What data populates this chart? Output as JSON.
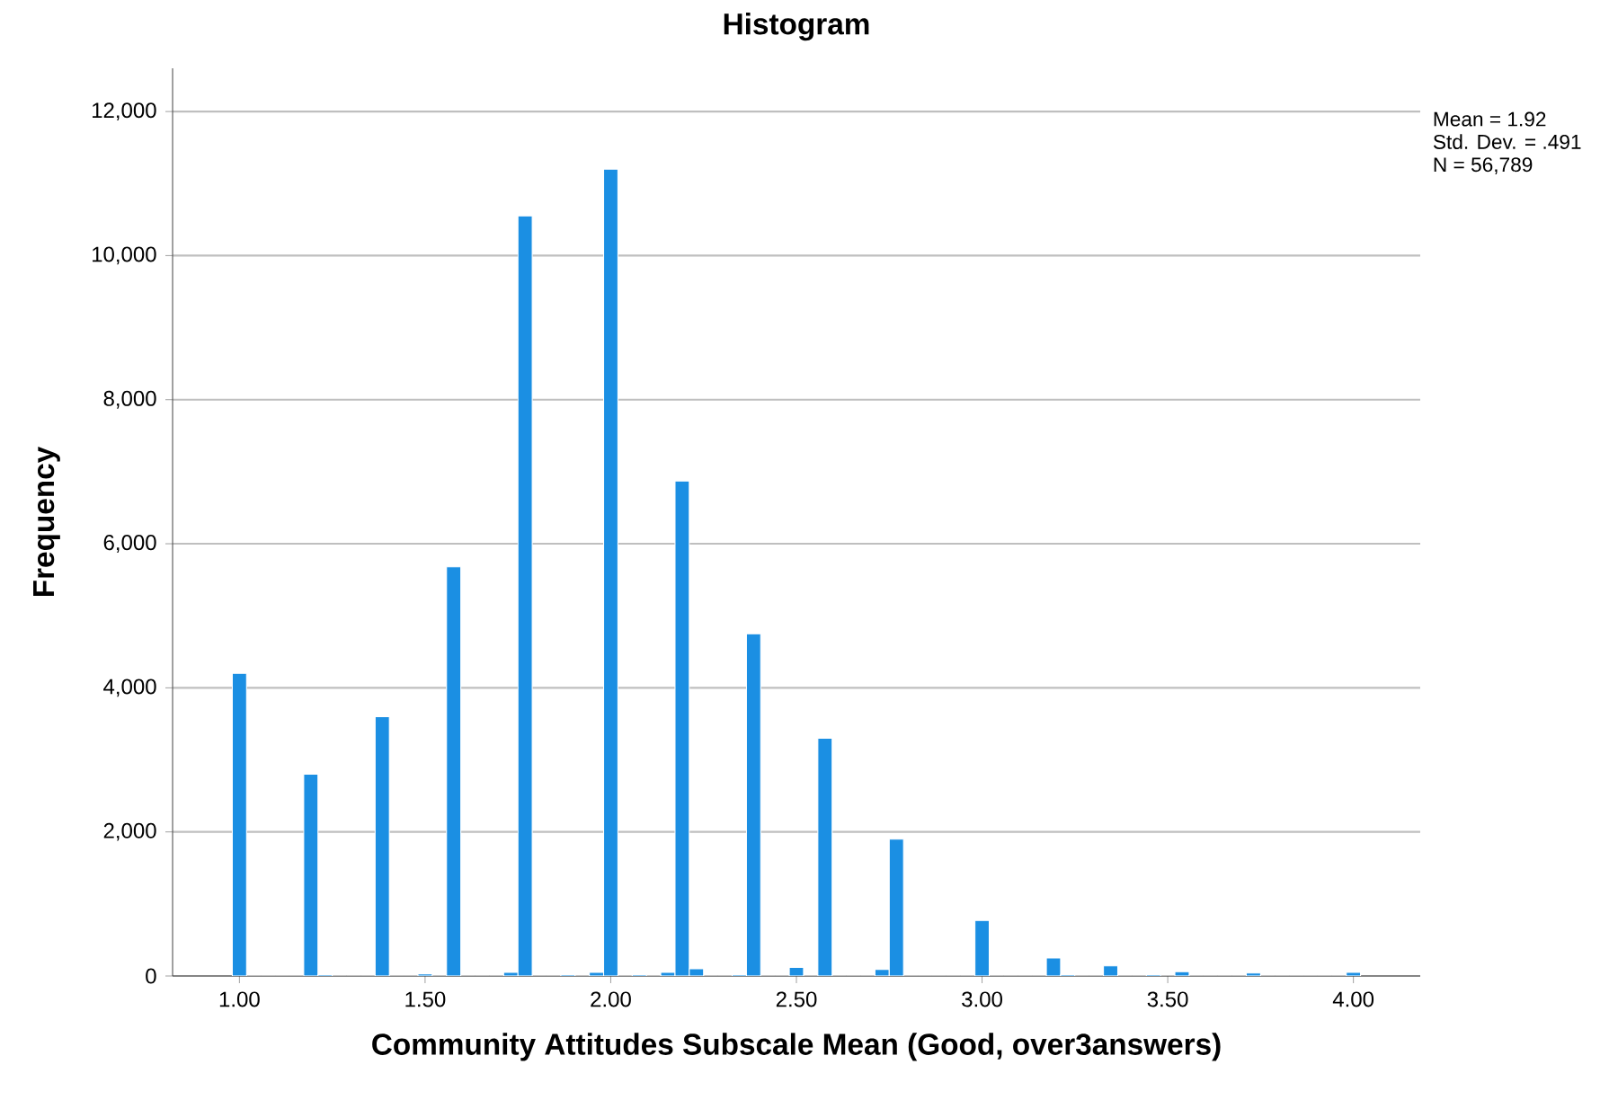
{
  "chart_data": {
    "type": "histogram",
    "title": "Histogram",
    "xlabel": "Community Attitudes Subscale Mean (Good, over3answers)",
    "ylabel": "Frequency",
    "annotations": [
      "Mean = 1.92",
      "Std. Dev. = .491",
      "N = 56,789"
    ],
    "bins": [
      0.9808,
      1.0192,
      1.0577,
      1.0962,
      1.1346,
      1.1731,
      1.2115,
      1.25,
      1.2885,
      1.3269,
      1.3654,
      1.4038,
      1.4423,
      1.4808,
      1.5192,
      1.5577,
      1.5962,
      1.6346,
      1.6731,
      1.7115,
      1.75,
      1.7885,
      1.8269,
      1.8654,
      1.9038,
      1.9423,
      1.9808,
      2.0192,
      2.0577,
      2.0962,
      2.1346,
      2.1731,
      2.2115,
      2.25,
      2.2885,
      2.3269,
      2.3654,
      2.4038,
      2.4423,
      2.4808,
      2.5192,
      2.5577,
      2.5962,
      2.6346,
      2.6731,
      2.7115,
      2.75,
      2.7885,
      2.8269,
      2.8654,
      2.9038,
      2.9423,
      2.9808,
      3.0192,
      3.0577,
      3.0962,
      3.1346,
      3.1731,
      3.2115,
      3.25,
      3.2885,
      3.3269,
      3.3654,
      3.4038,
      3.4423,
      3.4808,
      3.5192,
      3.5577,
      3.5962,
      3.6346,
      3.6731,
      3.7115,
      3.75,
      3.7885,
      3.8269,
      3.8654,
      3.9038,
      3.9423,
      3.9808,
      4.0192
    ],
    "values": [
      4200,
      0,
      0,
      0,
      0,
      2800,
      20,
      0,
      0,
      0,
      3600,
      0,
      0,
      30,
      0,
      5680,
      0,
      0,
      0,
      50,
      10550,
      0,
      0,
      20,
      0,
      50,
      11200,
      0,
      20,
      0,
      50,
      6870,
      100,
      0,
      0,
      20,
      4750,
      0,
      0,
      120,
      0,
      3300,
      0,
      0,
      0,
      90,
      1900,
      0,
      0,
      0,
      0,
      0,
      770,
      0,
      0,
      0,
      0,
      250,
      20,
      0,
      0,
      140,
      0,
      0,
      20,
      0,
      60,
      0,
      0,
      0,
      0,
      40,
      0,
      0,
      0,
      0,
      0,
      0,
      50
    ],
    "color": "#1b8fe3",
    "xlim": [
      0.82,
      4.18
    ],
    "ylim": [
      0,
      12600
    ],
    "xticks": [
      {
        "value": 1,
        "label": "1.00"
      },
      {
        "value": 1.5,
        "label": "1.50"
      },
      {
        "value": 2,
        "label": "2.00"
      },
      {
        "value": 2.5,
        "label": "2.50"
      },
      {
        "value": 3,
        "label": "3.00"
      },
      {
        "value": 3.5,
        "label": "3.50"
      },
      {
        "value": 4,
        "label": "4.00"
      }
    ],
    "yticks": [
      0,
      {
        "value": 2000,
        "label": "2,000"
      },
      {
        "value": 4000,
        "label": "4,000"
      },
      {
        "value": 6000,
        "label": "6,000"
      },
      {
        "value": 8000,
        "label": "8,000"
      },
      {
        "value": 10000,
        "label": "10,000"
      },
      {
        "value": 12000,
        "label": "12,000"
      }
    ],
    "grid": "y"
  }
}
